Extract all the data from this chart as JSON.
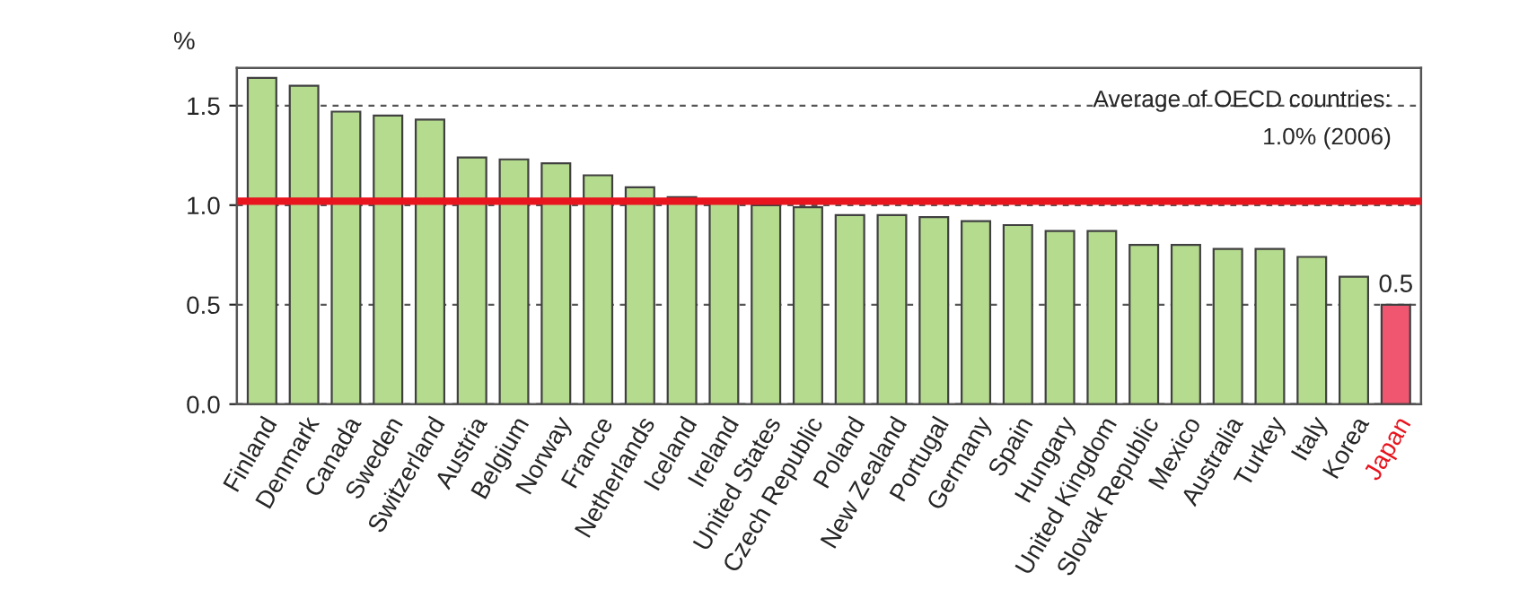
{
  "chart_data": {
    "type": "bar",
    "ylabel": "%",
    "categories": [
      "Finland",
      "Denmark",
      "Canada",
      "Sweden",
      "Switzerland",
      "Austria",
      "Belgium",
      "Norway",
      "France",
      "Netherlands",
      "Iceland",
      "Ireland",
      "United States",
      "Czech Republic",
      "Poland",
      "New Zealand",
      "Portugal",
      "Germany",
      "Spain",
      "Hungary",
      "United Kingdom",
      "Slovak Republic",
      "Mexico",
      "Australia",
      "Turkey",
      "Italy",
      "Korea",
      "Japan"
    ],
    "values": [
      1.64,
      1.6,
      1.47,
      1.45,
      1.43,
      1.24,
      1.23,
      1.21,
      1.15,
      1.09,
      1.04,
      1.02,
      1.0,
      0.99,
      0.95,
      0.95,
      0.94,
      0.92,
      0.9,
      0.87,
      0.87,
      0.8,
      0.8,
      0.78,
      0.78,
      0.74,
      0.64,
      0.5
    ],
    "colors": [
      "#b5db8e",
      "#b5db8e",
      "#b5db8e",
      "#b5db8e",
      "#b5db8e",
      "#b5db8e",
      "#b5db8e",
      "#b5db8e",
      "#b5db8e",
      "#b5db8e",
      "#b5db8e",
      "#b5db8e",
      "#b5db8e",
      "#b5db8e",
      "#b5db8e",
      "#b5db8e",
      "#b5db8e",
      "#b5db8e",
      "#b5db8e",
      "#b5db8e",
      "#b5db8e",
      "#b5db8e",
      "#b5db8e",
      "#b5db8e",
      "#b5db8e",
      "#b5db8e",
      "#b5db8e",
      "#f0566f"
    ],
    "value_labels": [
      null,
      null,
      null,
      null,
      null,
      null,
      null,
      null,
      null,
      null,
      null,
      null,
      null,
      null,
      null,
      null,
      null,
      null,
      null,
      null,
      null,
      null,
      null,
      null,
      null,
      null,
      null,
      "0.5"
    ],
    "ylim": [
      0,
      1.69
    ],
    "yticks": [
      {
        "value": 0,
        "label": "0.0"
      },
      {
        "value": 0.5,
        "label": "0.5"
      },
      {
        "value": 1.0,
        "label": "1.0"
      },
      {
        "value": 1.5,
        "label": "1.5"
      }
    ],
    "grid": "y",
    "line_style": "dashed",
    "ref_lines": [
      {
        "axis": "y",
        "value": 1.02,
        "color": "#e8141e",
        "label": "Average of OECD countries:\n1.0% (2006)"
      }
    ]
  }
}
